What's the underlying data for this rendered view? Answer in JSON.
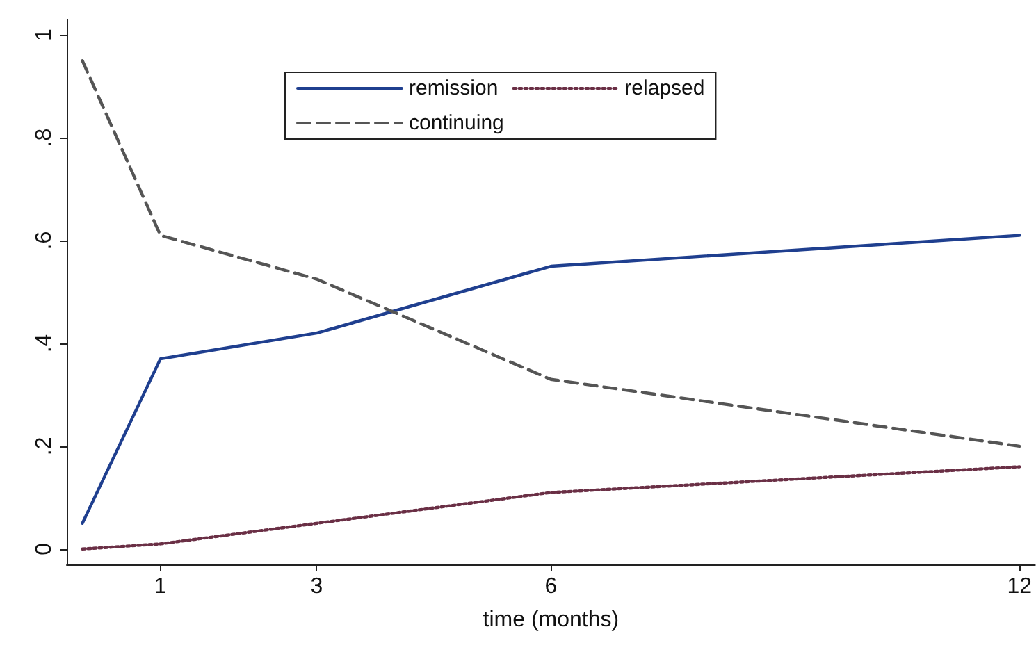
{
  "chart_data": {
    "type": "line",
    "xlabel": "time (months)",
    "x": [
      0,
      1,
      3,
      6,
      12
    ],
    "series": [
      {
        "name": "remission",
        "color": "#1f3f8f",
        "line_style": "solid",
        "values": [
          0.05,
          0.37,
          0.42,
          0.55,
          0.61
        ]
      },
      {
        "name": "relapsed",
        "color": "#6a2f45",
        "line_style": "dotted",
        "values": [
          0,
          0.01,
          0.05,
          0.11,
          0.16
        ]
      },
      {
        "name": "continuing",
        "color": "#555555",
        "line_style": "dashed",
        "values": [
          0.95,
          0.61,
          0.525,
          0.33,
          0.2
        ]
      }
    ],
    "xlim": [
      -0.2,
      12.2
    ],
    "xticks": [
      1,
      3,
      6,
      12
    ],
    "ylim": [
      -0.03,
      1.03
    ],
    "yticks": [
      0,
      {
        "value": 0.2,
        "label": ".2"
      },
      {
        "value": 0.4,
        "label": ".4"
      },
      {
        "value": 0.6,
        "label": ".6"
      },
      {
        "value": 0.8,
        "label": ".8"
      },
      1
    ],
    "grid": false,
    "legend": "top",
    "marker": "none"
  }
}
